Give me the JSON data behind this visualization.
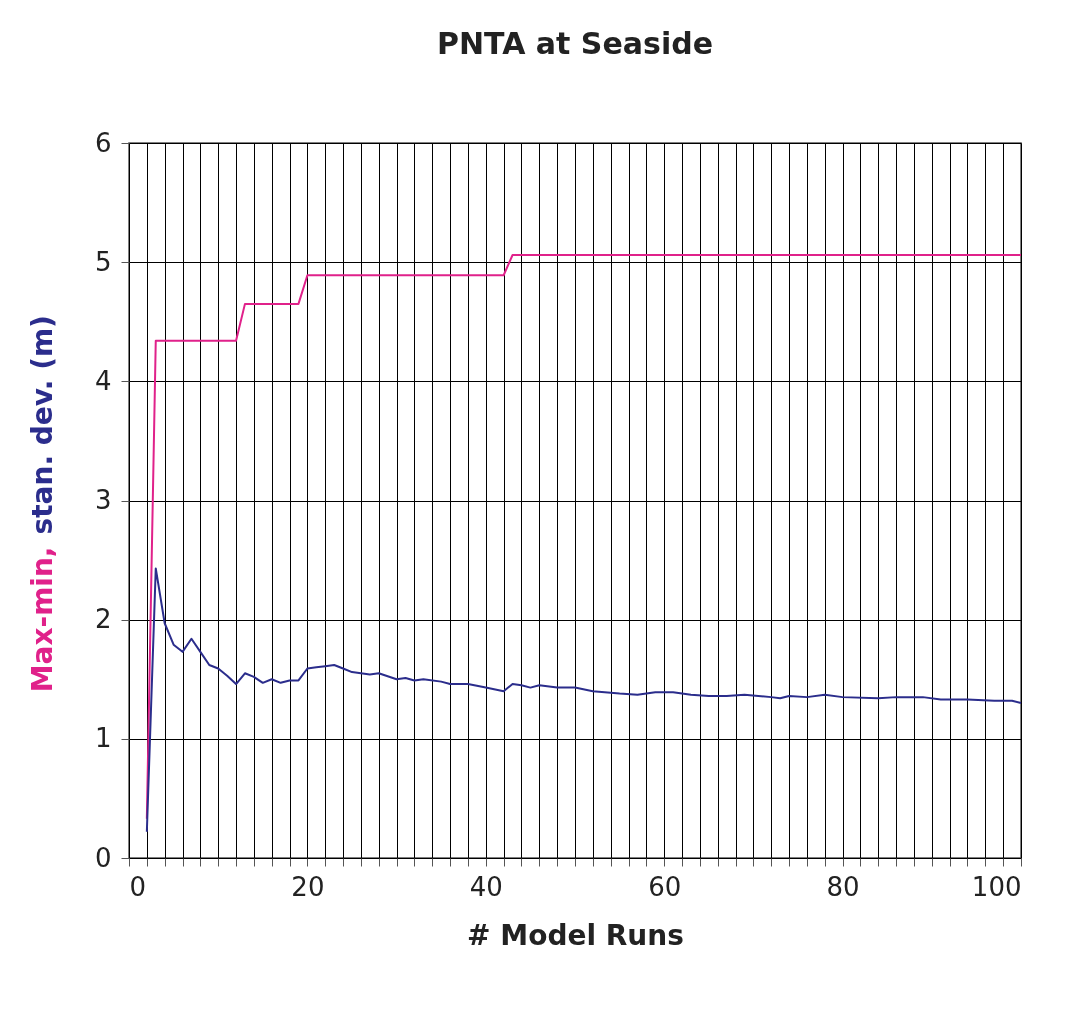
{
  "chart_data": {
    "type": "line",
    "title": "PNTA at Seaside",
    "xlabel": "# Model Runs",
    "ylabel": "Max-min, stan. dev. (m)",
    "xlim": [
      0,
      100
    ],
    "ylim": [
      0,
      6
    ],
    "xticks": [
      0,
      {
        "value": 2,
        "label": null
      },
      {
        "value": 4,
        "label": null
      },
      {
        "value": 6,
        "label": null
      },
      {
        "value": 8,
        "label": null
      },
      {
        "value": 10,
        "label": null
      },
      {
        "value": 12,
        "label": null
      },
      {
        "value": 14,
        "label": null
      },
      {
        "value": 16,
        "label": null
      },
      {
        "value": 18,
        "label": null
      },
      20,
      {
        "value": 22,
        "label": null
      },
      {
        "value": 24,
        "label": null
      },
      {
        "value": 26,
        "label": null
      },
      {
        "value": 28,
        "label": null
      },
      {
        "value": 30,
        "label": null
      },
      {
        "value": 32,
        "label": null
      },
      {
        "value": 34,
        "label": null
      },
      {
        "value": 36,
        "label": null
      },
      {
        "value": 38,
        "label": null
      },
      40,
      {
        "value": 42,
        "label": null
      },
      {
        "value": 44,
        "label": null
      },
      {
        "value": 46,
        "label": null
      },
      {
        "value": 48,
        "label": null
      },
      {
        "value": 50,
        "label": null
      },
      {
        "value": 52,
        "label": null
      },
      {
        "value": 54,
        "label": null
      },
      {
        "value": 56,
        "label": null
      },
      {
        "value": 58,
        "label": null
      },
      60,
      {
        "value": 62,
        "label": null
      },
      {
        "value": 64,
        "label": null
      },
      {
        "value": 66,
        "label": null
      },
      {
        "value": 68,
        "label": null
      },
      {
        "value": 70,
        "label": null
      },
      {
        "value": 72,
        "label": null
      },
      {
        "value": 74,
        "label": null
      },
      {
        "value": 76,
        "label": null
      },
      {
        "value": 78,
        "label": null
      },
      80,
      {
        "value": 82,
        "label": null
      },
      {
        "value": 84,
        "label": null
      },
      {
        "value": 86,
        "label": null
      },
      {
        "value": 88,
        "label": null
      },
      {
        "value": 90,
        "label": null
      },
      {
        "value": 92,
        "label": null
      },
      {
        "value": 94,
        "label": null
      },
      {
        "value": 96,
        "label": null
      },
      {
        "value": 98,
        "label": null
      },
      100
    ],
    "yticks": [
      0,
      1,
      2,
      3,
      4,
      5,
      6
    ],
    "grid": true,
    "marker": "none",
    "line_style": "solid",
    "series": [
      {
        "color": "#e0218a",
        "x": [
          2,
          3,
          12,
          13,
          19,
          20,
          42,
          43,
          100
        ],
        "values": [
          0.33,
          4.34,
          4.34,
          4.65,
          4.65,
          4.89,
          4.89,
          5.06,
          5.06
        ]
      },
      {
        "color": "#2b2d8c",
        "x": [
          2,
          3,
          4,
          5,
          6,
          7,
          8,
          9,
          10,
          11,
          12,
          13,
          14,
          15,
          16,
          17,
          18,
          19,
          20,
          21,
          22,
          23,
          24,
          25,
          26,
          27,
          28,
          30,
          31,
          32,
          33,
          35,
          36,
          38,
          40,
          42,
          43,
          44,
          45,
          46,
          48,
          50,
          52,
          55,
          57,
          59,
          61,
          63,
          65,
          67,
          69,
          72,
          73,
          74,
          76,
          78,
          80,
          84,
          86,
          89,
          91,
          94,
          97,
          99,
          100
        ],
        "values": [
          0.22,
          2.43,
          1.97,
          1.79,
          1.73,
          1.84,
          1.73,
          1.62,
          1.59,
          1.53,
          1.46,
          1.55,
          1.52,
          1.47,
          1.5,
          1.47,
          1.49,
          1.49,
          1.59,
          1.6,
          1.61,
          1.62,
          1.59,
          1.56,
          1.55,
          1.54,
          1.55,
          1.5,
          1.51,
          1.49,
          1.5,
          1.48,
          1.46,
          1.46,
          1.43,
          1.4,
          1.46,
          1.45,
          1.43,
          1.45,
          1.43,
          1.43,
          1.4,
          1.38,
          1.37,
          1.39,
          1.39,
          1.37,
          1.36,
          1.36,
          1.37,
          1.35,
          1.34,
          1.36,
          1.35,
          1.37,
          1.35,
          1.34,
          1.35,
          1.35,
          1.33,
          1.33,
          1.32,
          1.32,
          1.3
        ]
      }
    ]
  }
}
